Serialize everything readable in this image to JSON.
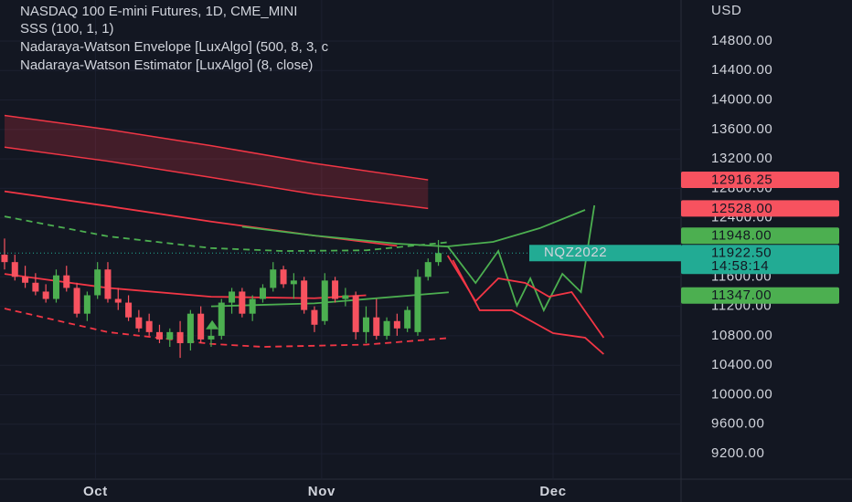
{
  "chart_data": {
    "type": "candlestick",
    "title": "NASDAQ 100 E-mini Futures, 1D, CME_MINI",
    "indicators": [
      "SSS (100, 1, 1)",
      "Nadaraya-Watson Envelope [LuxAlgo] (500, 8, 3, c",
      "Nadaraya-Watson Estimator [LuxAlgo] (8, close)"
    ],
    "currency": "USD",
    "xlim": [
      -0.44,
      65.49
    ],
    "xticks": [
      {
        "value": 8.8,
        "label": "Oct"
      },
      {
        "value": 30.7,
        "label": "Nov"
      },
      {
        "value": 53.1,
        "label": "Dec"
      }
    ],
    "ylim": [
      8854,
      15357
    ],
    "yticks": [
      {
        "value": 14800,
        "label": "14800.00"
      },
      {
        "value": 14400,
        "label": "14400.00"
      },
      {
        "value": 14000,
        "label": "14000.00"
      },
      {
        "value": 13600,
        "label": "13600.00"
      },
      {
        "value": 13200,
        "label": "13200.00"
      },
      {
        "value": 12800,
        "label": "12800.00"
      },
      {
        "value": 12400,
        "label": "12400.00"
      },
      {
        "value": 11600,
        "label": "11600.00"
      },
      {
        "value": 11200,
        "label": "11200.00"
      },
      {
        "value": 10800,
        "label": "10800.00"
      },
      {
        "value": 10400,
        "label": "10400.00"
      },
      {
        "value": 10000,
        "label": "10000.00"
      },
      {
        "value": 9600,
        "label": "9600.00"
      },
      {
        "value": 9200,
        "label": "9200.00"
      }
    ],
    "up_color": "#4caf50",
    "down_color": "#f7525f",
    "candles": {
      "x": [
        0,
        1,
        2,
        3,
        4,
        5,
        6,
        7,
        8,
        9,
        10,
        11,
        12,
        13,
        14,
        15,
        16,
        17,
        18,
        19,
        20,
        21,
        22,
        23,
        24,
        25,
        26,
        27,
        28,
        29,
        30,
        31,
        32,
        33,
        34,
        35,
        36,
        37,
        38,
        39,
        40,
        41,
        42
      ],
      "open": [
        11900,
        11800,
        11600,
        11520,
        11400,
        11300,
        11620,
        11450,
        11100,
        11350,
        11700,
        11300,
        11250,
        11050,
        11000,
        10850,
        10750,
        10850,
        10700,
        11100,
        10750,
        10800,
        11250,
        11400,
        11100,
        11300,
        11450,
        11700,
        11500,
        11550,
        11150,
        11000,
        11550,
        11300,
        11350,
        10850,
        11050,
        10800,
        11000,
        10900,
        10850,
        11600,
        11800
      ],
      "high": [
        12120,
        11900,
        11750,
        11650,
        11500,
        11700,
        11750,
        11520,
        11400,
        11800,
        11800,
        11450,
        11350,
        11150,
        11100,
        10950,
        10900,
        11000,
        11150,
        11200,
        10900,
        11300,
        11450,
        11450,
        11350,
        11500,
        11800,
        11750,
        11650,
        11600,
        11200,
        11650,
        11600,
        11450,
        11400,
        11200,
        11300,
        11050,
        11100,
        11200,
        11700,
        11850,
        12100
      ],
      "low": [
        11700,
        11550,
        11450,
        11350,
        11250,
        11250,
        11400,
        11050,
        11000,
        11300,
        11250,
        11150,
        11000,
        10850,
        10800,
        10700,
        10650,
        10500,
        10600,
        10700,
        10650,
        10750,
        11100,
        11050,
        11000,
        11250,
        11400,
        11450,
        11300,
        11100,
        10850,
        10950,
        11250,
        11200,
        10750,
        10700,
        10750,
        10750,
        10800,
        10850,
        10800,
        11550,
        11750
      ],
      "close": [
        11800,
        11600,
        11520,
        11400,
        11300,
        11620,
        11450,
        11100,
        11350,
        11700,
        11300,
        11250,
        11050,
        10900,
        10850,
        10750,
        10850,
        10700,
        11100,
        10750,
        10800,
        11250,
        11400,
        11100,
        11300,
        11450,
        11700,
        11500,
        11550,
        11150,
        10950,
        11550,
        11300,
        11350,
        10850,
        11050,
        10800,
        11000,
        10900,
        11150,
        11600,
        11800,
        11922.5
      ]
    },
    "band": {
      "color": "#f23645",
      "x": [
        0,
        10,
        20,
        30,
        41
      ],
      "upper": [
        13790,
        13600,
        13380,
        13140,
        12916
      ],
      "lower": [
        13360,
        13170,
        12950,
        12720,
        12528
      ]
    },
    "lines": [
      {
        "color": "#f23645",
        "dashed": false,
        "x": [
          0,
          10,
          20,
          30,
          38
        ],
        "values": [
          12760,
          12560,
          12350,
          12160,
          12020
        ]
      },
      {
        "color": "#4caf50",
        "dashed": false,
        "x": [
          23,
          30,
          38,
          43
        ],
        "values": [
          12280,
          12160,
          12050,
          12010
        ]
      },
      {
        "color": "#4caf50",
        "dashed": true,
        "x": [
          0,
          10,
          20,
          27,
          35,
          43
        ],
        "values": [
          12420,
          12150,
          11990,
          11950,
          11960,
          12070
        ]
      },
      {
        "color": "#f23645",
        "dashed": true,
        "x": [
          0,
          10,
          20,
          25,
          35,
          43
        ],
        "values": [
          11170,
          10850,
          10690,
          10650,
          10680,
          10770
        ]
      },
      {
        "color": "#f23645",
        "dashed": false,
        "x": [
          0,
          10,
          20,
          30,
          35
        ],
        "values": [
          11640,
          11450,
          11330,
          11310,
          11350
        ]
      },
      {
        "color": "#4caf50",
        "dashed": false,
        "x": [
          20,
          30,
          43
        ],
        "values": [
          11200,
          11240,
          11390
        ]
      },
      {
        "color": "#4caf50",
        "dashed": false,
        "x": [
          42.9,
          47.3,
          51.8,
          56.2
        ],
        "values": [
          12013,
          12075,
          12260,
          12508
        ]
      },
      {
        "color": "#4caf50",
        "dashed": false,
        "x": [
          42.9,
          45.6,
          47.8,
          49.6,
          50.9,
          52.2,
          54.0,
          55.8,
          57.1
        ],
        "values": [
          12013,
          11517,
          11951,
          11208,
          11579,
          11146,
          11641,
          11393,
          12570
        ]
      },
      {
        "color": "#f23645",
        "dashed": false,
        "x": [
          42.9,
          45.6,
          47.8,
          50.4,
          52.7,
          54.9,
          58.0
        ],
        "values": [
          11889,
          11269,
          11579,
          11517,
          11331,
          11393,
          10774
        ]
      },
      {
        "color": "#f23645",
        "dashed": false,
        "x": [
          43.4,
          46.0,
          49.1,
          53.1,
          56.2,
          58.0
        ],
        "values": [
          11827,
          11146,
          11146,
          10836,
          10774,
          10551
        ]
      }
    ],
    "signals": [
      {
        "x": 20.1,
        "value": 10950,
        "color": "#4caf50"
      }
    ],
    "price_tags": [
      {
        "value": 12916.25,
        "label": "12916.25",
        "color": "#f7525f"
      },
      {
        "value": 12528,
        "label": "12528.00",
        "color": "#f7525f"
      },
      {
        "value": 11948,
        "label": "11948.00",
        "color": "#4caf50"
      },
      {
        "value": 11922.5,
        "label": "11922.50",
        "symbol": "NQZ2022",
        "countdown": "14:58:14",
        "color": "#22ab94"
      },
      {
        "value": 11347,
        "label": "11347.00",
        "color": "#4caf50"
      }
    ]
  }
}
